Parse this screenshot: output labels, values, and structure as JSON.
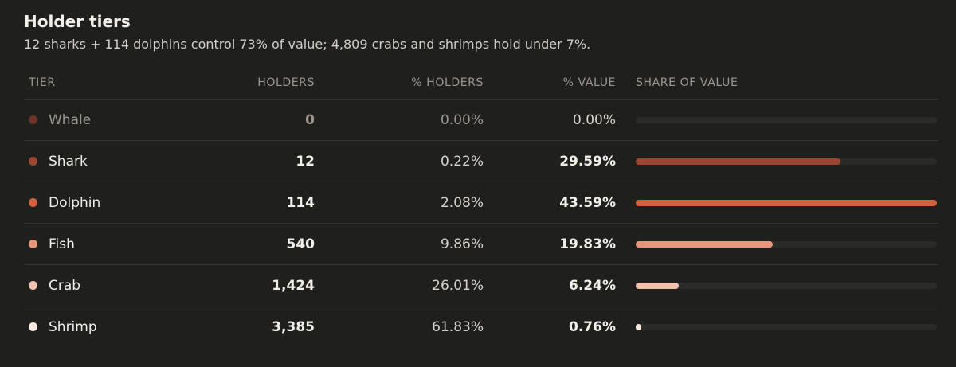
{
  "header": {
    "title": "Holder tiers",
    "subtitle": "12 sharks + 114 dolphins control 73% of value; 4,809 crabs and shrimps hold under 7%."
  },
  "table": {
    "columns": {
      "tier": "TIER",
      "holders": "HOLDERS",
      "pct_holders": "% HOLDERS",
      "pct_value": "% VALUE",
      "share": "SHARE OF VALUE"
    },
    "rows": [
      {
        "tier": "Whale",
        "holders": "0",
        "pct_holders": "0.00%",
        "pct_value": "0.00%",
        "share_fraction": 0.0,
        "color": "#6e3324"
      },
      {
        "tier": "Shark",
        "holders": "12",
        "pct_holders": "0.22%",
        "pct_value": "29.59%",
        "share_fraction": 0.6788,
        "color": "#9a4631"
      },
      {
        "tier": "Dolphin",
        "holders": "114",
        "pct_holders": "2.08%",
        "pct_value": "43.59%",
        "share_fraction": 1.0,
        "color": "#d0623f"
      },
      {
        "tier": "Fish",
        "holders": "540",
        "pct_holders": "9.86%",
        "pct_value": "19.83%",
        "share_fraction": 0.4549,
        "color": "#e8957b"
      },
      {
        "tier": "Crab",
        "holders": "1,424",
        "pct_holders": "26.01%",
        "pct_value": "6.24%",
        "share_fraction": 0.1432,
        "color": "#f1c1b0"
      },
      {
        "tier": "Shrimp",
        "holders": "3,385",
        "pct_holders": "61.83%",
        "pct_value": "0.76%",
        "share_fraction": 0.0174,
        "color": "#fbe9e2"
      }
    ]
  }
}
